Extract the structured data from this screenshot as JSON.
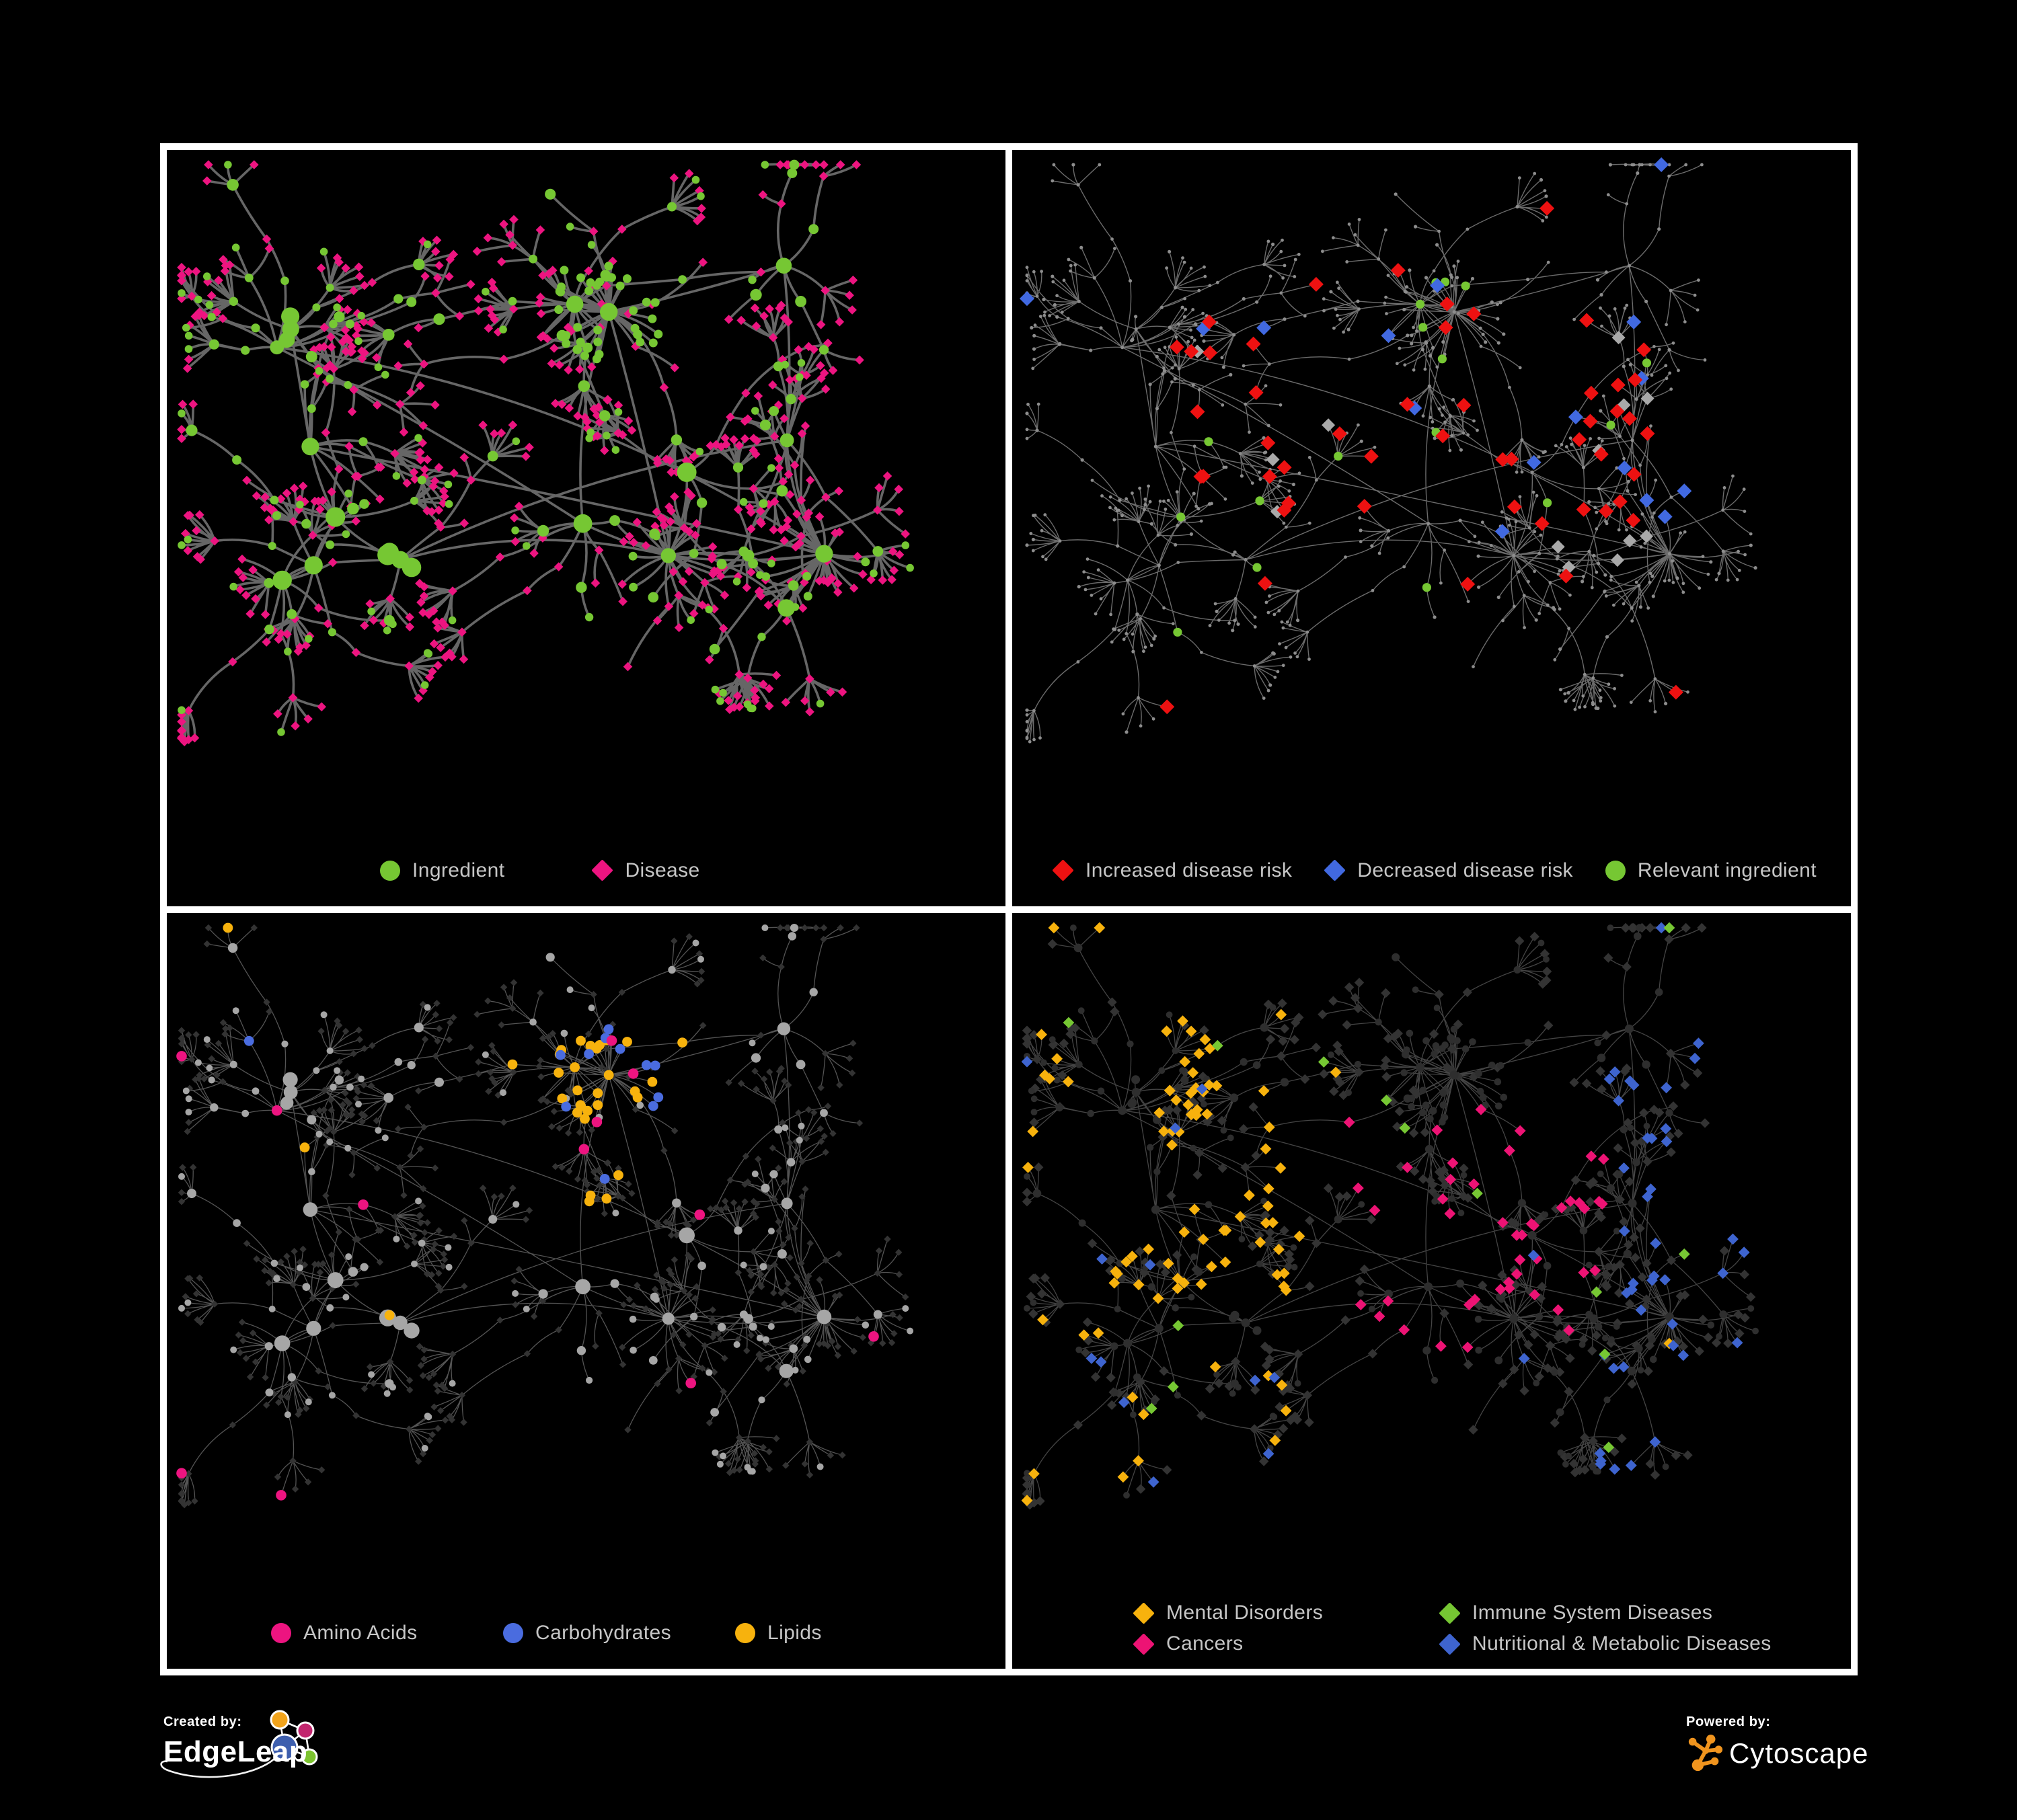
{
  "page": {
    "background": "#000000",
    "frame_color": "#ffffff",
    "legend_text_color": "#c6c6c6"
  },
  "panels": [
    {
      "name": "ingredient-disease-network",
      "legend": [
        {
          "label": "Ingredient",
          "shape": "circle",
          "color": "#76c733"
        },
        {
          "label": "Disease",
          "shape": "diamond",
          "color": "#ed1480"
        }
      ]
    },
    {
      "name": "disease-risk-network",
      "legend": [
        {
          "label": "Increased disease risk",
          "shape": "diamond",
          "color": "#ee1111"
        },
        {
          "label": "Decreased disease risk",
          "shape": "diamond",
          "color": "#4169e1"
        },
        {
          "label": "Relevant ingredient",
          "shape": "circle",
          "color": "#76c733"
        }
      ]
    },
    {
      "name": "compound-class-network",
      "legend": [
        {
          "label": "Amino Acids",
          "shape": "circle",
          "color": "#ed1480"
        },
        {
          "label": "Carbohydrates",
          "shape": "circle",
          "color": "#4a6cdf"
        },
        {
          "label": "Lipids",
          "shape": "circle",
          "color": "#f7b20d"
        }
      ]
    },
    {
      "name": "disease-class-network",
      "legend": [
        {
          "label": "Mental Disorders",
          "shape": "diamond",
          "color": "#f7b20d"
        },
        {
          "label": "Immune System Diseases",
          "shape": "diamond",
          "color": "#76c733"
        },
        {
          "label": "Cancers",
          "shape": "diamond",
          "color": "#ed1374"
        },
        {
          "label": "Nutritional & Metabolic Diseases",
          "shape": "diamond",
          "color": "#3e64cf"
        }
      ]
    }
  ],
  "footer": {
    "created_by_label": "Created by:",
    "created_by_name": "EdgeLeap",
    "powered_by_label": "Powered by:",
    "powered_by_name": "Cytoscape"
  },
  "colors": {
    "tiny_dot": "#8d8d8d",
    "grey_diamond": "#a9a9a9",
    "light_grey_node": "#a6a6a6",
    "dark_diamond": "#333333",
    "dark_circle": "#2e2e2e",
    "edgeleap_orange": "#f2a41c",
    "edgeleap_magenta": "#c2266e",
    "edgeleap_blue": "#3e5fae",
    "edgeleap_green": "#7cc32f",
    "cytoscape_orange": "#f0941e"
  },
  "networks": {
    "seed": 11,
    "hubs": 16,
    "bursts": [
      {
        "hub": 2,
        "n": 24,
        "green": false
      },
      {
        "hub": 5,
        "n": 20,
        "green": false
      },
      {
        "hub": 9,
        "n": 27,
        "green": true
      },
      {
        "hub": 12,
        "n": 18,
        "green": false
      }
    ],
    "panels": [
      {
        "style": {
          "edge": "#6f6f6f",
          "edge_w": 3.6,
          "edge_op": 0.92
        }
      },
      {
        "style": {
          "edge": "#999999",
          "edge_w": 1.4,
          "edge_op": 0.7
        },
        "p": {
          "core_red": 0.16,
          "core_blue": 0.21,
          "core_grey": 0.26,
          "far_red": 0.015,
          "far_blue": 0.022,
          "core_green": 0.18,
          "far_green": 0.025
        }
      },
      {
        "style": {
          "edge": "#a8a8a8",
          "edge_w": 1.3,
          "edge_op": 0.5
        },
        "p": {
          "zone_lipid": 0.62,
          "zone_carb": 0.74,
          "sc_orange": 0.045,
          "sc_blue": 0.013,
          "sc_pink": 0.042,
          "pink_boost": 0.03
        }
      },
      {
        "style": {
          "edge": "#979797",
          "edge_w": 1.3,
          "edge_op": 0.45
        },
        "p": {
          "mental_core": 0.55,
          "mental_edge": 0.22,
          "cancer": 0.33,
          "nutri": 0.3,
          "nutri_sc": 0.04,
          "immune": 0.022,
          "orange_sc": 0.015
        }
      }
    ]
  }
}
